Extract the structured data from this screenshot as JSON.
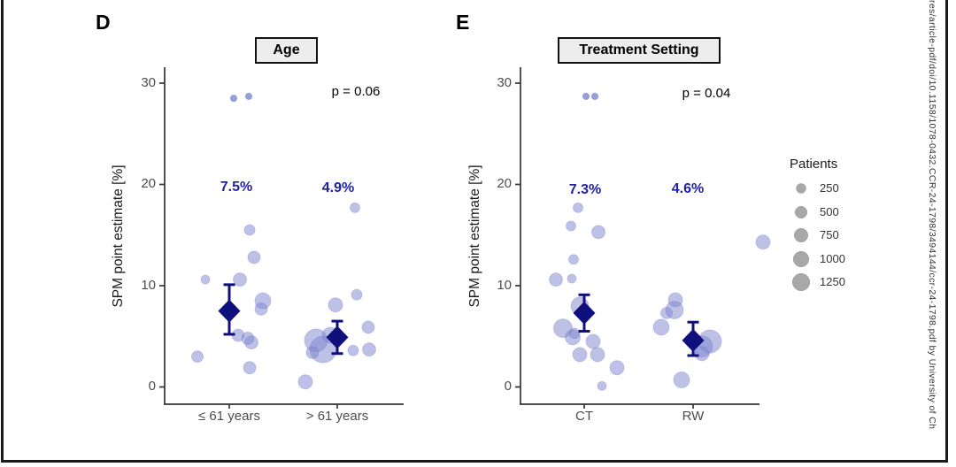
{
  "chart_data": {
    "type": "scatter",
    "ylabel": "SPM point estimate [%]",
    "ylim": [
      0,
      30
    ],
    "y_ticks": [
      30,
      20,
      10,
      0
    ],
    "legend_position": "right",
    "grid": false,
    "panels": [
      {
        "letter": "D",
        "title": "Age",
        "p_label": "p = 0.06",
        "groups": [
          {
            "label": "≤ 61 years",
            "mean_label": "7.5%",
            "mean": {
              "v": 7.5,
              "lo": 5.2,
              "hi": 10.1
            },
            "points": [
              [
                5,
                28.5,
                3.8
              ],
              [
                22,
                28.7,
                3.8
              ],
              [
                23,
                15.5,
                6
              ],
              [
                28,
                12.8,
                7
              ],
              [
                -27,
                10.6,
                5
              ],
              [
                12,
                10.6,
                7.5
              ],
              [
                38,
                8.5,
                9
              ],
              [
                36,
                7.7,
                7
              ],
              [
                10,
                5.1,
                7
              ],
              [
                21,
                4.8,
                7
              ],
              [
                25,
                4.4,
                7.5
              ],
              [
                -36,
                3.0,
                6.5
              ],
              [
                23,
                1.9,
                7
              ]
            ]
          },
          {
            "label": "> 61 years",
            "mean_label": "4.9%",
            "mean": {
              "v": 4.9,
              "lo": 3.3,
              "hi": 6.5
            },
            "points": [
              [
                20,
                17.7,
                5.5
              ],
              [
                22,
                9.1,
                6
              ],
              [
                -2,
                8.1,
                8
              ],
              [
                35,
                5.9,
                7
              ],
              [
                -8,
                5.1,
                9
              ],
              [
                -24,
                4.6,
                13
              ],
              [
                -16,
                3.7,
                15
              ],
              [
                -28,
                3.4,
                7
              ],
              [
                18,
                3.6,
                6
              ],
              [
                36,
                3.7,
                7.5
              ],
              [
                -36,
                0.5,
                8
              ]
            ]
          }
        ]
      },
      {
        "letter": "E",
        "title": "Treatment Setting",
        "p_label": "p = 0.04",
        "groups": [
          {
            "label": "CT",
            "mean_label": "7.3%",
            "mean": {
              "v": 7.3,
              "lo": 5.5,
              "hi": 9.1
            },
            "points": [
              [
                2,
                28.7,
                3.8
              ],
              [
                12,
                28.7,
                3.8
              ],
              [
                -7,
                17.7,
                5.5
              ],
              [
                -15,
                15.9,
                5.5
              ],
              [
                16,
                15.3,
                7.5
              ],
              [
                -12,
                12.6,
                5.5
              ],
              [
                -32,
                10.6,
                7.5
              ],
              [
                -14,
                10.7,
                5
              ],
              [
                -5,
                8.0,
                10
              ],
              [
                -24,
                5.8,
                10.5
              ],
              [
                -11,
                5.3,
                6
              ],
              [
                -13,
                4.9,
                8.5
              ],
              [
                10,
                4.5,
                8
              ],
              [
                -5,
                3.2,
                8
              ],
              [
                15,
                3.2,
                8
              ],
              [
                37,
                1.9,
                8
              ],
              [
                20,
                0.1,
                5
              ]
            ]
          },
          {
            "label": "RW",
            "mean_label": "4.6%",
            "mean": {
              "v": 4.6,
              "lo": 3.1,
              "hi": 6.4
            },
            "points": [
              [
                -20,
                8.6,
                8
              ],
              [
                -21,
                7.6,
                10
              ],
              [
                -30,
                7.3,
                6.5
              ],
              [
                -36,
                5.9,
                9
              ],
              [
                79,
                14.3,
                8
              ],
              [
                19,
                4.5,
                13
              ],
              [
                10,
                4.0,
                12
              ],
              [
                10,
                3.3,
                8
              ],
              [
                -13,
                0.7,
                9
              ]
            ]
          }
        ]
      }
    ]
  },
  "legend": {
    "title": "Patients",
    "items": [
      {
        "label": "250",
        "r": 5.5
      },
      {
        "label": "500",
        "r": 6.8
      },
      {
        "label": "750",
        "r": 7.8
      },
      {
        "label": "1000",
        "r": 8.8
      },
      {
        "label": "1250",
        "r": 9.8
      }
    ]
  },
  "watermark": {
    "text": "res/article-pdf/doi/10.1158/1078-0432.CCR-24-1798/3494144/ccr-24-1798.pdf by University of Ch"
  },
  "colors": {
    "bubble": "#7d84ce",
    "summary": "#10107d",
    "mean_label_blue": "#1f1fa8",
    "legend_gray": "#a8a8a8",
    "axis": "#333333"
  }
}
